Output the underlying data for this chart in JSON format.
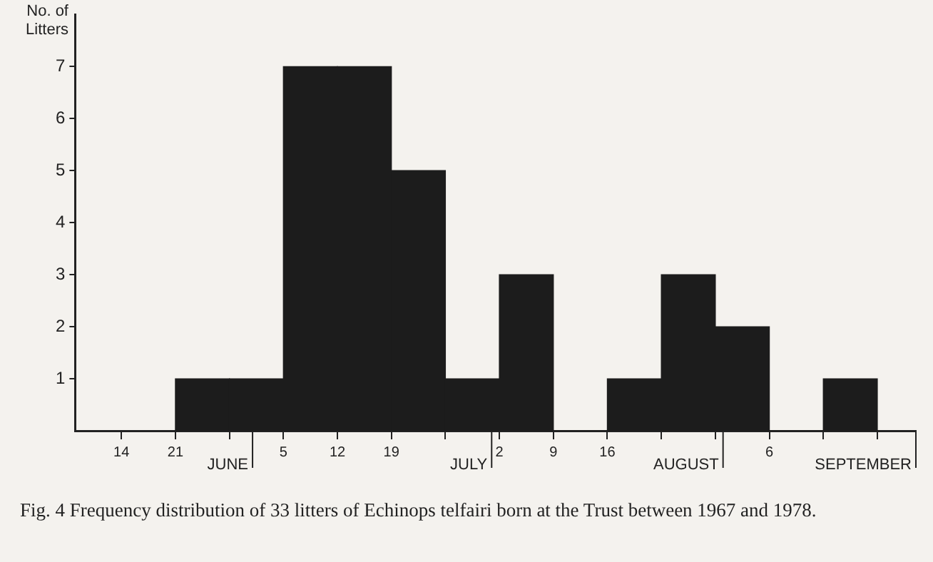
{
  "chart_data": {
    "type": "histogram",
    "ylabel": "No. of Litters",
    "bins": [
      "--06-21",
      "--06-28",
      "--07-05",
      "--07-12",
      "--07-19",
      "--07-26",
      "--08-02",
      "--08-09",
      "--08-16",
      "--08-23",
      "--08-30",
      "--09-06",
      "--09-13",
      "--09-20"
    ],
    "values": [
      1,
      1,
      7,
      7,
      5,
      1,
      3,
      0,
      1,
      3,
      2,
      0,
      1
    ],
    "color": "#1c1c1c",
    "xlim": [
      "--06-08",
      "--09-25"
    ],
    "xticks": [
      {
        "value": "--06-14",
        "label": "14"
      },
      {
        "value": "--06-21",
        "label": "21"
      },
      {
        "value": "--06-28",
        "label": null
      },
      {
        "value": "--07-05",
        "label": "5"
      },
      {
        "value": "--07-12",
        "label": "12"
      },
      {
        "value": "--07-19",
        "label": "19"
      },
      {
        "value": "--07-26",
        "label": null
      },
      {
        "value": "--08-02",
        "label": "2"
      },
      {
        "value": "--08-09",
        "label": "9"
      },
      {
        "value": "--08-16",
        "label": "16"
      },
      {
        "value": "--08-23",
        "label": null
      },
      {
        "value": "--08-30",
        "label": null
      },
      {
        "value": "--09-06",
        "label": "6"
      },
      {
        "value": "--09-13",
        "label": null
      },
      {
        "value": "--09-20",
        "label": null
      }
    ],
    "ylim": [
      0,
      8
    ],
    "yticks": [
      1,
      2,
      3,
      4,
      5,
      6,
      7
    ],
    "grid": false,
    "legend": false,
    "ref_lines": [
      {
        "axis": "x",
        "value": "--07-01",
        "label": "JUNE"
      },
      {
        "axis": "x",
        "value": "--08-01",
        "label": "JULY"
      },
      {
        "axis": "x",
        "value": "--08-31",
        "label": "AUGUST"
      },
      {
        "axis": "x",
        "value": "--09-25",
        "label": "SEPTEMBER"
      }
    ],
    "annotations": [
      "Fig. 4   Frequency distribution of 33 litters of Echinops telfairi born at the Trust between 1967 and 1978."
    ]
  }
}
